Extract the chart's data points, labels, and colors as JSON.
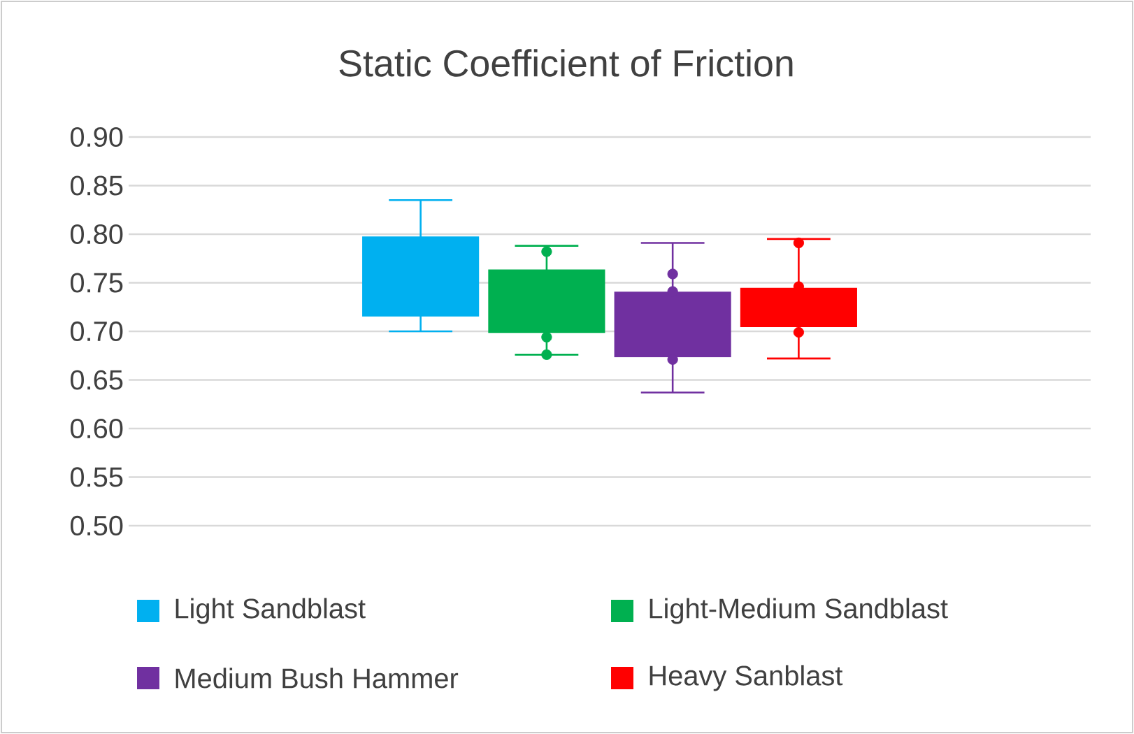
{
  "chart_data": {
    "type": "box",
    "title": "Static Coefficient of Friction",
    "categories": [
      null
    ],
    "ylim": [
      0.5,
      0.9
    ],
    "yticks": [
      {
        "value": 0.5,
        "label": "0.50"
      },
      {
        "value": 0.55,
        "label": "0.55"
      },
      {
        "value": 0.6,
        "label": "0.60"
      },
      {
        "value": 0.65,
        "label": "0.65"
      },
      {
        "value": 0.7,
        "label": "0.70"
      },
      {
        "value": 0.75,
        "label": "0.75"
      },
      {
        "value": 0.8,
        "label": "0.80"
      },
      {
        "value": 0.85,
        "label": "0.85"
      },
      {
        "value": 0.9,
        "label": "0.90"
      }
    ],
    "grid": "y",
    "legend": "bottom",
    "marker": "circle",
    "tick_labels": "y",
    "series": [
      {
        "name": "Light Sandblast",
        "color": "#00b0f0",
        "boxes": [
          {
            "low": 0.7,
            "q1": 0.716,
            "median": 0.757,
            "q3": 0.797,
            "high": 0.835
          }
        ]
      },
      {
        "name": "Light-Medium Sandblast",
        "color": "#00b050",
        "boxes": [
          {
            "low": 0.676,
            "q1": 0.699,
            "median": 0.731,
            "q3": 0.763,
            "high": 0.788,
            "outliers": [
              0.782,
              0.694,
              0.676
            ]
          }
        ]
      },
      {
        "name": "Medium Bush Hammer",
        "color": "#7030a0",
        "boxes": [
          {
            "low": 0.637,
            "q1": 0.674,
            "median": 0.707,
            "q3": 0.74,
            "high": 0.791,
            "outliers": [
              0.759,
              0.741,
              0.671
            ]
          }
        ]
      },
      {
        "name": "Heavy Sanblast",
        "color": "#ff0000",
        "boxes": [
          {
            "low": 0.672,
            "q1": 0.705,
            "median": 0.725,
            "q3": 0.744,
            "high": 0.795,
            "outliers": [
              0.791,
              0.746,
              0.699
            ]
          }
        ]
      }
    ]
  }
}
